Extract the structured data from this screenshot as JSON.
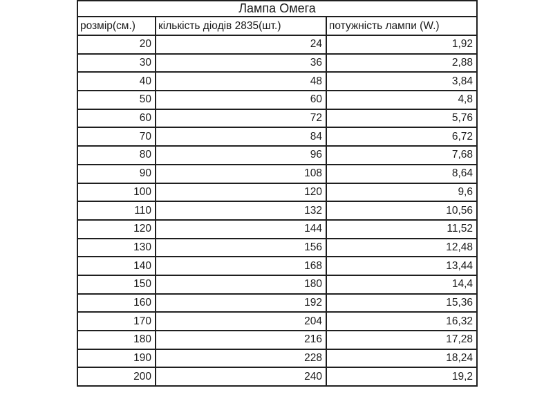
{
  "table": {
    "title": "Лампа Омега",
    "headers": [
      "розмір(см.)",
      "кількість діодів 2835(шт.)",
      "потужність лампи (W.)"
    ],
    "rows": [
      [
        "20",
        "24",
        "1,92"
      ],
      [
        "30",
        "36",
        "2,88"
      ],
      [
        "40",
        "48",
        "3,84"
      ],
      [
        "50",
        "60",
        "4,8"
      ],
      [
        "60",
        "72",
        "5,76"
      ],
      [
        "70",
        "84",
        "6,72"
      ],
      [
        "80",
        "96",
        "7,68"
      ],
      [
        "90",
        "108",
        "8,64"
      ],
      [
        "100",
        "120",
        "9,6"
      ],
      [
        "110",
        "132",
        "10,56"
      ],
      [
        "120",
        "144",
        "11,52"
      ],
      [
        "130",
        "156",
        "12,48"
      ],
      [
        "140",
        "168",
        "13,44"
      ],
      [
        "150",
        "180",
        "14,4"
      ],
      [
        "160",
        "192",
        "15,36"
      ],
      [
        "170",
        "204",
        "16,32"
      ],
      [
        "180",
        "216",
        "17,28"
      ],
      [
        "190",
        "228",
        "18,24"
      ],
      [
        "200",
        "240",
        "19,2"
      ]
    ],
    "colors": {
      "border": "#1f1f1f",
      "text": "#1a1a1a",
      "background": "#ffffff"
    }
  }
}
